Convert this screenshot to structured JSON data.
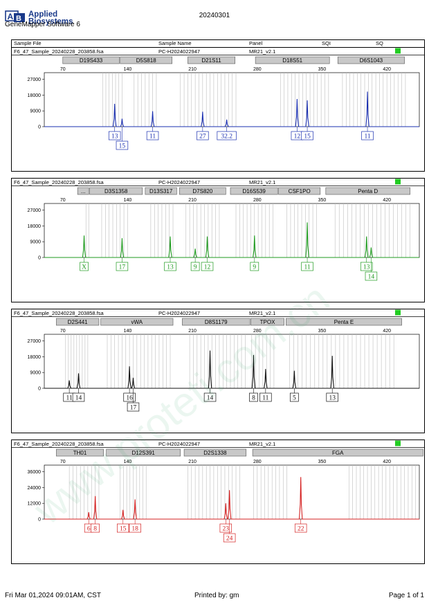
{
  "header": {
    "logo_line1": "Applied",
    "logo_line2": "Biosystems",
    "software": "GeneMapper Software 6",
    "date_code": "20240301"
  },
  "columns": [
    "Sample File",
    "Sample Name",
    "Panel",
    "SQI",
    "SQ"
  ],
  "panels": [
    {
      "file": "F6_47_Sample_20240228_203858.fsa",
      "sample": "PC-H2024022947",
      "panel": "MR21_v2.1",
      "status_color": "#22cc22",
      "trace_color": "#1a2fb0",
      "label_color": "#1a2fb0",
      "ymax": 30000,
      "yticks": [
        "27000",
        "18000",
        "9000",
        "0"
      ],
      "xticks": [
        "70",
        "140",
        "210",
        "280",
        "350",
        "420"
      ],
      "loci": [
        "D19S433",
        "D5S818",
        "D21S11",
        "D18S51",
        "D6S1043"
      ],
      "alleles": [
        "13",
        "15",
        "11",
        "27",
        "32.2",
        "12",
        "15",
        "11"
      ],
      "peaks": [
        {
          "size": 126,
          "height": 13000
        },
        {
          "size": 134,
          "height": 4500
        },
        {
          "size": 167,
          "height": 8800
        },
        {
          "size": 221,
          "height": 8500
        },
        {
          "size": 247,
          "height": 4000
        },
        {
          "size": 323,
          "height": 15800
        },
        {
          "size": 334,
          "height": 15000
        },
        {
          "size": 399,
          "height": 20000
        }
      ]
    },
    {
      "file": "F6_47_Sample_20240228_203858.fsa",
      "sample": "PC-H2024022947",
      "panel": "MR21_v2.1",
      "status_color": "#22cc22",
      "trace_color": "#1f9a1f",
      "label_color": "#1f9a1f",
      "ymax": 30000,
      "yticks": [
        "27000",
        "18000",
        "9000",
        "0"
      ],
      "xticks": [
        "70",
        "140",
        "210",
        "280",
        "350",
        "420"
      ],
      "loci": [
        "...",
        "D3S1358",
        "D13S317",
        "D7S820",
        "D16S539",
        "CSF1PO",
        "Penta D"
      ],
      "alleles": [
        "X",
        "17",
        "13",
        "9",
        "12",
        "9",
        "11",
        "13",
        "14"
      ],
      "peaks": [
        {
          "size": 93,
          "height": 12500
        },
        {
          "size": 134,
          "height": 11000
        },
        {
          "size": 186,
          "height": 12000
        },
        {
          "size": 213,
          "height": 5000
        },
        {
          "size": 226,
          "height": 12000
        },
        {
          "size": 277,
          "height": 12500
        },
        {
          "size": 334,
          "height": 20000
        },
        {
          "size": 398,
          "height": 12000
        },
        {
          "size": 403,
          "height": 5700
        }
      ]
    },
    {
      "file": "F6_47_Sample_20240228_203858.fsa",
      "sample": "PC-H2024022947",
      "panel": "MR21_v2.1",
      "status_color": "#22cc22",
      "trace_color": "#111111",
      "label_color": "#111111",
      "ymax": 30000,
      "yticks": [
        "27000",
        "18000",
        "9000",
        "0"
      ],
      "xticks": [
        "70",
        "140",
        "210",
        "280",
        "350",
        "420"
      ],
      "loci": [
        "D2S441",
        "vWA",
        "D8S1179",
        "TPOX",
        "Penta E"
      ],
      "alleles": [
        "11",
        "14",
        "16",
        "17",
        "14",
        "8",
        "11",
        "5",
        "13"
      ],
      "peaks": [
        {
          "size": 77,
          "height": 4500
        },
        {
          "size": 87,
          "height": 8500
        },
        {
          "size": 142,
          "height": 12500
        },
        {
          "size": 146,
          "height": 6000
        },
        {
          "size": 229,
          "height": 21500
        },
        {
          "size": 276,
          "height": 19000
        },
        {
          "size": 289,
          "height": 11000
        },
        {
          "size": 320,
          "height": 10000
        },
        {
          "size": 361,
          "height": 18500
        }
      ]
    },
    {
      "file": "F6_47_Sample_20240228_203858.fsa",
      "sample": "PC-H2024022947",
      "panel": "MR21_v2.1",
      "status_color": "#22cc22",
      "trace_color": "#d42020",
      "label_color": "#d42020",
      "ymax": 40000,
      "yticks": [
        "36000",
        "24000",
        "12000",
        "0"
      ],
      "xticks": [
        "70",
        "140",
        "210",
        "280",
        "350",
        "420"
      ],
      "loci": [
        "TH01",
        "D12S391",
        "D2S1338",
        "FGA"
      ],
      "alleles": [
        "6",
        "8",
        "15",
        "18",
        "23",
        "24",
        "22"
      ],
      "peaks": [
        {
          "size": 98,
          "height": 5200
        },
        {
          "size": 105,
          "height": 17500
        },
        {
          "size": 135,
          "height": 7000
        },
        {
          "size": 148,
          "height": 15000
        },
        {
          "size": 246,
          "height": 12000
        },
        {
          "size": 250,
          "height": 22000
        },
        {
          "size": 327,
          "height": 32000
        }
      ]
    }
  ],
  "footer": {
    "timestamp": "Fri Mar 01,2024 09:01AM, CST",
    "printed_by": "Printed by: gm",
    "page": "Page 1 of 1"
  },
  "watermark": "www.proteti.com.cn"
}
